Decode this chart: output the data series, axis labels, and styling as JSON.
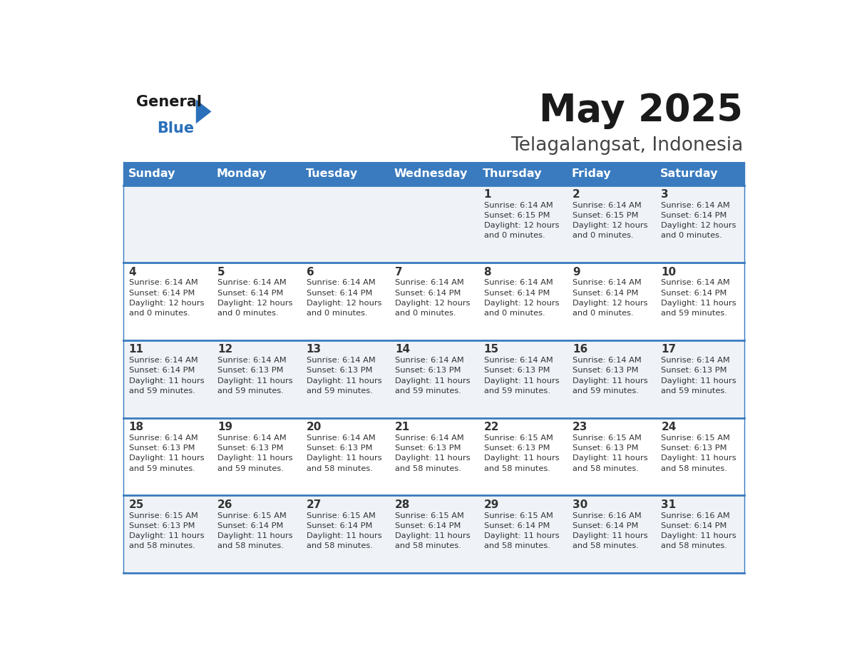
{
  "title": "May 2025",
  "subtitle": "Telagalangsat, Indonesia",
  "days_of_week": [
    "Sunday",
    "Monday",
    "Tuesday",
    "Wednesday",
    "Thursday",
    "Friday",
    "Saturday"
  ],
  "header_bg": "#3a7bbf",
  "header_text": "#ffffff",
  "cell_bg_light": "#eff3f8",
  "cell_bg_white": "#ffffff",
  "row_line_color": "#3a7bbf",
  "text_color": "#333333",
  "calendar_data": [
    [
      null,
      null,
      null,
      null,
      {
        "day": 1,
        "sunrise": "6:14 AM",
        "sunset": "6:15 PM",
        "daylight": "12 hours",
        "daylight2": "and 0 minutes."
      },
      {
        "day": 2,
        "sunrise": "6:14 AM",
        "sunset": "6:15 PM",
        "daylight": "12 hours",
        "daylight2": "and 0 minutes."
      },
      {
        "day": 3,
        "sunrise": "6:14 AM",
        "sunset": "6:14 PM",
        "daylight": "12 hours",
        "daylight2": "and 0 minutes."
      }
    ],
    [
      {
        "day": 4,
        "sunrise": "6:14 AM",
        "sunset": "6:14 PM",
        "daylight": "12 hours",
        "daylight2": "and 0 minutes."
      },
      {
        "day": 5,
        "sunrise": "6:14 AM",
        "sunset": "6:14 PM",
        "daylight": "12 hours",
        "daylight2": "and 0 minutes."
      },
      {
        "day": 6,
        "sunrise": "6:14 AM",
        "sunset": "6:14 PM",
        "daylight": "12 hours",
        "daylight2": "and 0 minutes."
      },
      {
        "day": 7,
        "sunrise": "6:14 AM",
        "sunset": "6:14 PM",
        "daylight": "12 hours",
        "daylight2": "and 0 minutes."
      },
      {
        "day": 8,
        "sunrise": "6:14 AM",
        "sunset": "6:14 PM",
        "daylight": "12 hours",
        "daylight2": "and 0 minutes."
      },
      {
        "day": 9,
        "sunrise": "6:14 AM",
        "sunset": "6:14 PM",
        "daylight": "12 hours",
        "daylight2": "and 0 minutes."
      },
      {
        "day": 10,
        "sunrise": "6:14 AM",
        "sunset": "6:14 PM",
        "daylight": "11 hours",
        "daylight2": "and 59 minutes."
      }
    ],
    [
      {
        "day": 11,
        "sunrise": "6:14 AM",
        "sunset": "6:14 PM",
        "daylight": "11 hours",
        "daylight2": "and 59 minutes."
      },
      {
        "day": 12,
        "sunrise": "6:14 AM",
        "sunset": "6:13 PM",
        "daylight": "11 hours",
        "daylight2": "and 59 minutes."
      },
      {
        "day": 13,
        "sunrise": "6:14 AM",
        "sunset": "6:13 PM",
        "daylight": "11 hours",
        "daylight2": "and 59 minutes."
      },
      {
        "day": 14,
        "sunrise": "6:14 AM",
        "sunset": "6:13 PM",
        "daylight": "11 hours",
        "daylight2": "and 59 minutes."
      },
      {
        "day": 15,
        "sunrise": "6:14 AM",
        "sunset": "6:13 PM",
        "daylight": "11 hours",
        "daylight2": "and 59 minutes."
      },
      {
        "day": 16,
        "sunrise": "6:14 AM",
        "sunset": "6:13 PM",
        "daylight": "11 hours",
        "daylight2": "and 59 minutes."
      },
      {
        "day": 17,
        "sunrise": "6:14 AM",
        "sunset": "6:13 PM",
        "daylight": "11 hours",
        "daylight2": "and 59 minutes."
      }
    ],
    [
      {
        "day": 18,
        "sunrise": "6:14 AM",
        "sunset": "6:13 PM",
        "daylight": "11 hours",
        "daylight2": "and 59 minutes."
      },
      {
        "day": 19,
        "sunrise": "6:14 AM",
        "sunset": "6:13 PM",
        "daylight": "11 hours",
        "daylight2": "and 59 minutes."
      },
      {
        "day": 20,
        "sunrise": "6:14 AM",
        "sunset": "6:13 PM",
        "daylight": "11 hours",
        "daylight2": "and 58 minutes."
      },
      {
        "day": 21,
        "sunrise": "6:14 AM",
        "sunset": "6:13 PM",
        "daylight": "11 hours",
        "daylight2": "and 58 minutes."
      },
      {
        "day": 22,
        "sunrise": "6:15 AM",
        "sunset": "6:13 PM",
        "daylight": "11 hours",
        "daylight2": "and 58 minutes."
      },
      {
        "day": 23,
        "sunrise": "6:15 AM",
        "sunset": "6:13 PM",
        "daylight": "11 hours",
        "daylight2": "and 58 minutes."
      },
      {
        "day": 24,
        "sunrise": "6:15 AM",
        "sunset": "6:13 PM",
        "daylight": "11 hours",
        "daylight2": "and 58 minutes."
      }
    ],
    [
      {
        "day": 25,
        "sunrise": "6:15 AM",
        "sunset": "6:13 PM",
        "daylight": "11 hours",
        "daylight2": "and 58 minutes."
      },
      {
        "day": 26,
        "sunrise": "6:15 AM",
        "sunset": "6:14 PM",
        "daylight": "11 hours",
        "daylight2": "and 58 minutes."
      },
      {
        "day": 27,
        "sunrise": "6:15 AM",
        "sunset": "6:14 PM",
        "daylight": "11 hours",
        "daylight2": "and 58 minutes."
      },
      {
        "day": 28,
        "sunrise": "6:15 AM",
        "sunset": "6:14 PM",
        "daylight": "11 hours",
        "daylight2": "and 58 minutes."
      },
      {
        "day": 29,
        "sunrise": "6:15 AM",
        "sunset": "6:14 PM",
        "daylight": "11 hours",
        "daylight2": "and 58 minutes."
      },
      {
        "day": 30,
        "sunrise": "6:16 AM",
        "sunset": "6:14 PM",
        "daylight": "11 hours",
        "daylight2": "and 58 minutes."
      },
      {
        "day": 31,
        "sunrise": "6:16 AM",
        "sunset": "6:14 PM",
        "daylight": "11 hours",
        "daylight2": "and 58 minutes."
      }
    ]
  ]
}
